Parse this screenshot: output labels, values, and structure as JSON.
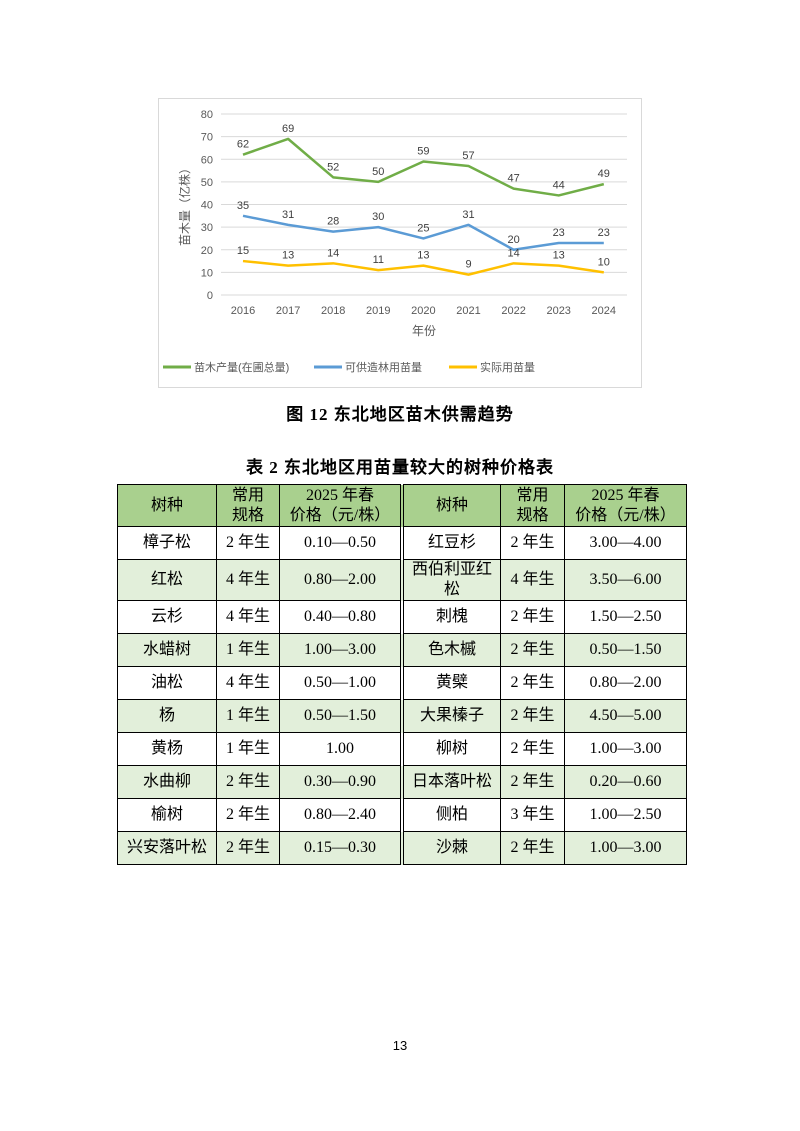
{
  "chart_data": {
    "type": "line",
    "title": "",
    "xlabel": "年份",
    "ylabel": "苗木量（亿株）",
    "x": [
      "2016",
      "2017",
      "2018",
      "2019",
      "2020",
      "2021",
      "2022",
      "2023",
      "2024"
    ],
    "ylim": [
      0,
      80
    ],
    "yticks": [
      0,
      10,
      20,
      30,
      40,
      50,
      60,
      70,
      80
    ],
    "grid": true,
    "legend_position": "bottom",
    "series": [
      {
        "name": "苗木产量(在圃总量)",
        "color": "#70ad47",
        "values": [
          62,
          69,
          52,
          50,
          59,
          57,
          47,
          44,
          49
        ]
      },
      {
        "name": "可供造林用苗量",
        "color": "#5b9bd5",
        "values": [
          35,
          31,
          28,
          30,
          25,
          31,
          20,
          23,
          23
        ]
      },
      {
        "name": "实际用苗量",
        "color": "#ffc000",
        "values": [
          15,
          13,
          14,
          11,
          13,
          9,
          14,
          13,
          10
        ]
      }
    ]
  },
  "figure_caption": "图 12  东北地区苗木供需趋势",
  "table_caption": "表 2  东北地区用苗量较大的树种价格表",
  "table": {
    "headers": [
      "树种",
      "常用\n规格",
      "2025 年春\n价格（元/株）",
      "树种",
      "常用\n规格",
      "2025 年春\n价格（元/株）"
    ],
    "rows": [
      [
        "樟子松",
        "2 年生",
        "0.10—0.50",
        "红豆杉",
        "2 年生",
        "3.00—4.00"
      ],
      [
        "红松",
        "4 年生",
        "0.80—2.00",
        "西伯利亚红松",
        "4 年生",
        "3.50—6.00"
      ],
      [
        "云杉",
        "4 年生",
        "0.40—0.80",
        "刺槐",
        "2 年生",
        "1.50—2.50"
      ],
      [
        "水蜡树",
        "1 年生",
        "1.00—3.00",
        "色木槭",
        "2 年生",
        "0.50—1.50"
      ],
      [
        "油松",
        "4 年生",
        "0.50—1.00",
        "黄檗",
        "2 年生",
        "0.80—2.00"
      ],
      [
        "杨",
        "1 年生",
        "0.50—1.50",
        "大果榛子",
        "2 年生",
        "4.50—5.00"
      ],
      [
        "黄杨",
        "1 年生",
        "1.00",
        "柳树",
        "2 年生",
        "1.00—3.00"
      ],
      [
        "水曲柳",
        "2 年生",
        "0.30—0.90",
        "日本落叶松",
        "2 年生",
        "0.20—0.60"
      ],
      [
        "榆树",
        "2 年生",
        "0.80—2.40",
        "侧柏",
        "3 年生",
        "1.00—2.50"
      ],
      [
        "兴安落叶松",
        "2 年生",
        "0.15—0.30",
        "沙棘",
        "2 年生",
        "1.00—3.00"
      ]
    ],
    "colors": {
      "header": "#a9d08e",
      "alt_row": "#e2efda"
    }
  },
  "page_number": "13"
}
